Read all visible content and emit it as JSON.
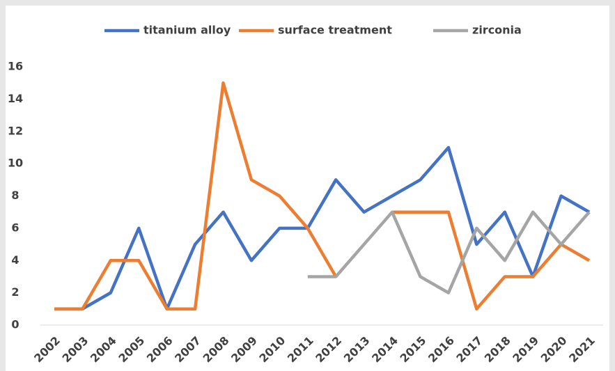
{
  "chart_data": {
    "type": "line",
    "categories": [
      "2002",
      "2003",
      "2004",
      "2005",
      "2006",
      "2007",
      "2008",
      "2009",
      "2010",
      "2011",
      "2012",
      "2013",
      "2014",
      "2015",
      "2016",
      "2017",
      "2018",
      "2019",
      "2020",
      "2021"
    ],
    "series": [
      {
        "name": "titanium alloy",
        "color": "#4472c4",
        "values": [
          1,
          1,
          2,
          6,
          1,
          5,
          7,
          4,
          6,
          6,
          9,
          7,
          8,
          9,
          11,
          5,
          7,
          3,
          8,
          7
        ]
      },
      {
        "name": "surface treatment",
        "color": "#ed7d31",
        "values": [
          1,
          1,
          4,
          4,
          1,
          1,
          15,
          9,
          8,
          6,
          3,
          null,
          7,
          7,
          7,
          1,
          3,
          3,
          5,
          4
        ]
      },
      {
        "name": "zirconia",
        "color": "#a5a5a5",
        "values": [
          null,
          null,
          null,
          null,
          null,
          null,
          null,
          null,
          null,
          3,
          3,
          5,
          7,
          3,
          2,
          6,
          4,
          7,
          5,
          7
        ]
      }
    ],
    "ylim": [
      0,
      16
    ],
    "yticks": [
      0,
      2,
      4,
      6,
      8,
      10,
      12,
      14,
      16
    ],
    "grid": false,
    "legend": "top"
  }
}
